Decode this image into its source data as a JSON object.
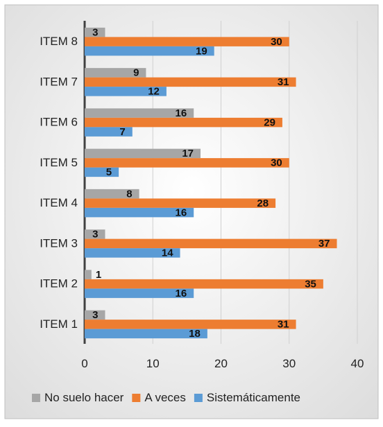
{
  "chart_data": {
    "type": "bar",
    "orientation": "horizontal",
    "categories": [
      "ITEM 1",
      "ITEM 2",
      "ITEM 3",
      "ITEM 4",
      "ITEM 5",
      "ITEM 6",
      "ITEM 7",
      "ITEM 8"
    ],
    "series": [
      {
        "name": "No suelo hacer",
        "color": "#A6A6A6",
        "values": [
          3,
          1,
          3,
          8,
          17,
          16,
          9,
          3
        ]
      },
      {
        "name": "A veces",
        "color": "#ED7D31",
        "values": [
          31,
          35,
          37,
          28,
          30,
          29,
          31,
          30
        ]
      },
      {
        "name": "Sistemáticamente",
        "color": "#5B9BD5",
        "values": [
          18,
          16,
          14,
          16,
          5,
          7,
          12,
          19
        ]
      }
    ],
    "xlim": [
      0,
      40
    ],
    "xticks": [
      0,
      10,
      20,
      30,
      40
    ],
    "grid": true,
    "legend": "bottom",
    "data_labels": true
  }
}
